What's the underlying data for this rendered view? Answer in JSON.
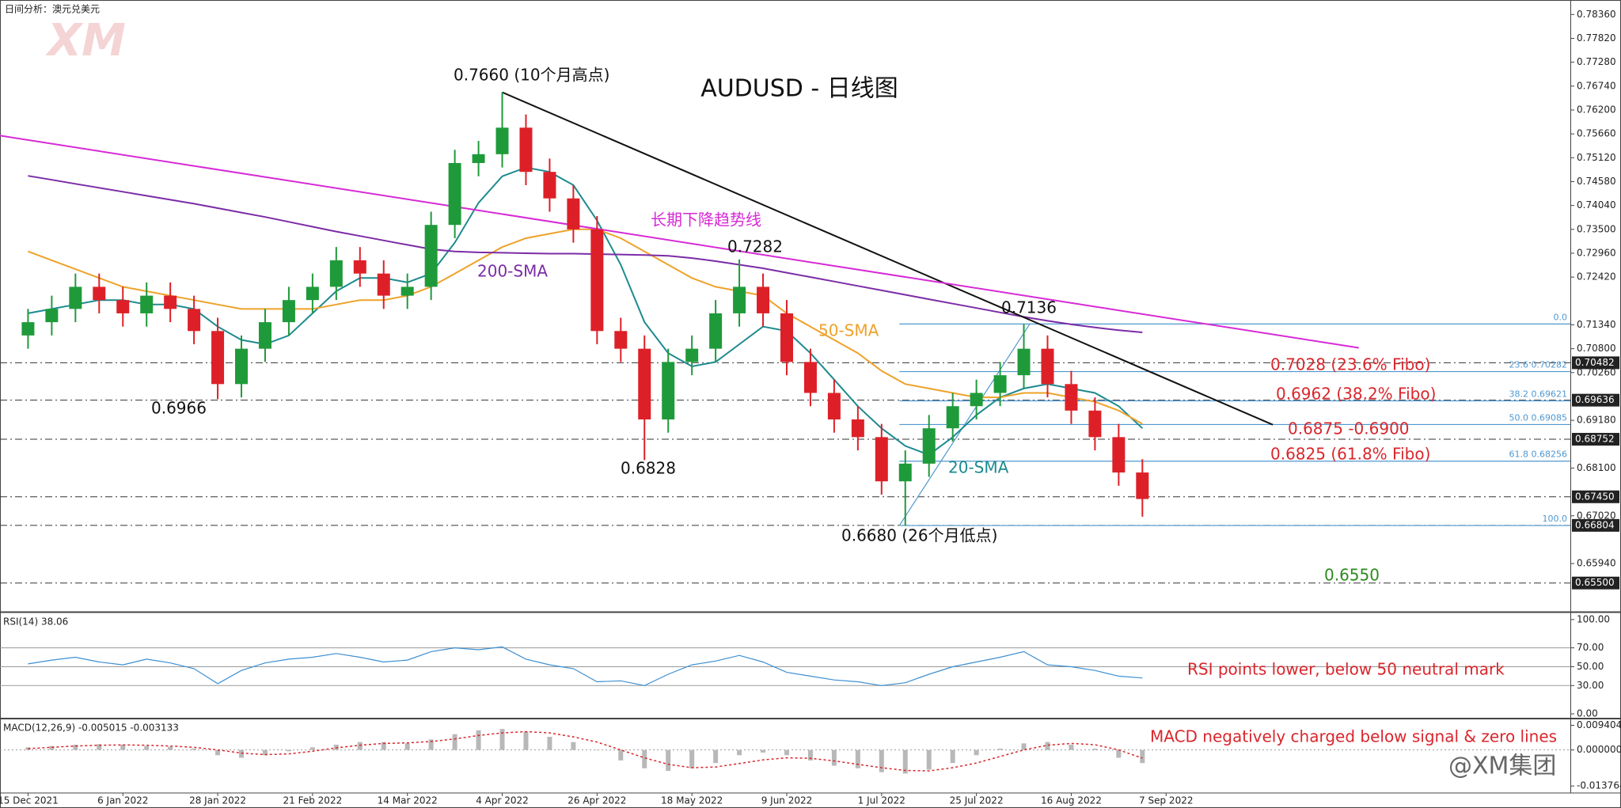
{
  "chart_data": [
    {
      "type": "candlestick",
      "title": "AUDUSD - 日线图",
      "subtitle": "日间分析：澳元兑美元",
      "logo": "XM",
      "watermark": "@XM集团",
      "x": [
        0,
        4,
        8,
        12,
        16,
        20,
        24,
        28,
        32,
        36,
        40,
        44,
        48,
        52,
        56,
        60,
        64,
        68,
        72,
        76,
        80,
        84,
        88,
        92,
        96,
        100,
        104,
        108,
        112,
        116,
        120,
        124,
        128,
        132,
        136,
        140,
        144,
        148,
        152,
        156,
        160,
        164,
        168,
        172,
        176,
        180,
        184,
        188
      ],
      "open": [
        0.711,
        0.714,
        0.717,
        0.722,
        0.719,
        0.716,
        0.72,
        0.717,
        0.712,
        0.7,
        0.708,
        0.714,
        0.719,
        0.722,
        0.728,
        0.725,
        0.72,
        0.722,
        0.736,
        0.75,
        0.752,
        0.758,
        0.748,
        0.742,
        0.735,
        0.712,
        0.708,
        0.692,
        0.705,
        0.708,
        0.716,
        0.722,
        0.716,
        0.705,
        0.698,
        0.692,
        0.688,
        0.678,
        0.682,
        0.69,
        0.695,
        0.698,
        0.702,
        0.708,
        0.7,
        0.694,
        0.688,
        0.68
      ],
      "high": [
        0.717,
        0.72,
        0.725,
        0.725,
        0.722,
        0.723,
        0.723,
        0.72,
        0.715,
        0.711,
        0.717,
        0.722,
        0.725,
        0.731,
        0.731,
        0.728,
        0.725,
        0.739,
        0.753,
        0.755,
        0.766,
        0.761,
        0.751,
        0.745,
        0.738,
        0.715,
        0.711,
        0.708,
        0.711,
        0.719,
        0.7282,
        0.725,
        0.719,
        0.708,
        0.701,
        0.695,
        0.691,
        0.685,
        0.693,
        0.698,
        0.701,
        0.705,
        0.7136,
        0.711,
        0.703,
        0.697,
        0.691,
        0.683
      ],
      "low": [
        0.708,
        0.711,
        0.714,
        0.716,
        0.713,
        0.713,
        0.714,
        0.709,
        0.6966,
        0.697,
        0.705,
        0.711,
        0.716,
        0.719,
        0.722,
        0.717,
        0.717,
        0.719,
        0.733,
        0.747,
        0.749,
        0.745,
        0.739,
        0.732,
        0.709,
        0.705,
        0.6828,
        0.689,
        0.702,
        0.705,
        0.713,
        0.713,
        0.702,
        0.695,
        0.689,
        0.685,
        0.675,
        0.668,
        0.679,
        0.687,
        0.692,
        0.695,
        0.699,
        0.697,
        0.691,
        0.685,
        0.677,
        0.67
      ],
      "close": [
        0.714,
        0.717,
        0.722,
        0.719,
        0.716,
        0.72,
        0.717,
        0.712,
        0.7,
        0.708,
        0.714,
        0.719,
        0.722,
        0.728,
        0.725,
        0.72,
        0.722,
        0.736,
        0.75,
        0.752,
        0.758,
        0.748,
        0.742,
        0.735,
        0.712,
        0.708,
        0.692,
        0.705,
        0.708,
        0.716,
        0.722,
        0.716,
        0.705,
        0.698,
        0.692,
        0.688,
        0.678,
        0.682,
        0.69,
        0.695,
        0.698,
        0.702,
        0.708,
        0.7,
        0.694,
        0.688,
        0.68,
        0.674
      ],
      "up_color": "#1f9a3a",
      "down_color": "#dd2027",
      "series": [
        {
          "name": "20-SMA",
          "color": "#1d8a90",
          "values": [
            0.716,
            0.717,
            0.718,
            0.719,
            0.719,
            0.718,
            0.718,
            0.717,
            0.713,
            0.71,
            0.709,
            0.711,
            0.716,
            0.721,
            0.724,
            0.724,
            0.723,
            0.725,
            0.732,
            0.741,
            0.747,
            0.749,
            0.748,
            0.745,
            0.737,
            0.727,
            0.714,
            0.707,
            0.704,
            0.705,
            0.709,
            0.713,
            0.712,
            0.707,
            0.701,
            0.695,
            0.69,
            0.686,
            0.684,
            0.688,
            0.693,
            0.697,
            0.699,
            0.7,
            0.699,
            0.698,
            0.695,
            0.69
          ]
        },
        {
          "name": "50-SMA",
          "color": "#eea22a",
          "values": [
            0.73,
            0.728,
            0.726,
            0.724,
            0.722,
            0.721,
            0.72,
            0.719,
            0.718,
            0.717,
            0.717,
            0.717,
            0.717,
            0.718,
            0.719,
            0.719,
            0.72,
            0.722,
            0.725,
            0.728,
            0.731,
            0.733,
            0.734,
            0.735,
            0.735,
            0.733,
            0.73,
            0.727,
            0.724,
            0.722,
            0.721,
            0.72,
            0.716,
            0.713,
            0.71,
            0.707,
            0.703,
            0.7,
            0.699,
            0.698,
            0.697,
            0.697,
            0.698,
            0.698,
            0.697,
            0.696,
            0.694,
            0.691
          ]
        },
        {
          "name": "200-SMA",
          "color": "#7b2ca6",
          "values": [
            0.7471,
            0.7462,
            0.7453,
            0.7444,
            0.7435,
            0.7426,
            0.7417,
            0.7408,
            0.7398,
            0.7388,
            0.7378,
            0.7367,
            0.7356,
            0.7345,
            0.7335,
            0.7325,
            0.7315,
            0.7305,
            0.73,
            0.7298,
            0.7297,
            0.7296,
            0.7295,
            0.7295,
            0.7294,
            0.7293,
            0.7292,
            0.729,
            0.7285,
            0.7278,
            0.727,
            0.7262,
            0.7252,
            0.7242,
            0.7232,
            0.7222,
            0.7212,
            0.7202,
            0.7192,
            0.7182,
            0.7172,
            0.7162,
            0.7152,
            0.7143,
            0.7135,
            0.7128,
            0.7122,
            0.7117
          ]
        }
      ],
      "trendlines": [
        {
          "x": [
            80,
            210
          ],
          "y": [
            0.766,
            0.6908
          ],
          "color": "#111111"
        },
        {
          "x": [
            -4.73,
            224.5
          ],
          "y": [
            0.7562,
            0.7082
          ],
          "color": "#d62ad6"
        }
      ],
      "fibo": {
        "x": [
          147,
          169
        ],
        "y": [
          0.668,
          0.7136
        ],
        "color": "#4f97cf",
        "levels": [
          {
            "value": 0.7136,
            "label": "0.0"
          },
          {
            "value": 0.70282,
            "label": "23.6 0.70282"
          },
          {
            "value": 0.69621,
            "label": "38.2 0.69621"
          },
          {
            "value": 0.69085,
            "label": "50.0 0.69085"
          },
          {
            "value": 0.68256,
            "label": "61.8 0.68256"
          },
          {
            "value": 0.668,
            "label": "100.0"
          }
        ]
      },
      "levels": [
        0.70482,
        0.69636,
        0.68752,
        {
          "value": 0.6745,
          "label": "0.67450"
        },
        0.66804,
        {
          "value": 0.655,
          "label": "0.65500"
        }
      ],
      "xlim": [
        -4.73,
        260.2
      ],
      "ylim": [
        0.64868,
        0.78688
      ],
      "xticks": [
        {
          "value": 0,
          "label": "15 Dec 2021"
        },
        {
          "value": 16,
          "label": "6 Jan 2022"
        },
        {
          "value": 32,
          "label": "28 Jan 2022"
        },
        {
          "value": 48,
          "label": "21 Feb 2022"
        },
        {
          "value": 64,
          "label": "14 Mar 2022"
        },
        {
          "value": 80,
          "label": "4 Apr 2022"
        },
        {
          "value": 96,
          "label": "26 Apr 2022"
        },
        {
          "value": 112,
          "label": "18 May 2022"
        },
        {
          "value": 128,
          "label": "9 Jun 2022"
        },
        {
          "value": 144,
          "label": "1 Jul 2022"
        },
        {
          "value": 160,
          "label": "25 Jul 2022"
        },
        {
          "value": 176,
          "label": "16 Aug 2022"
        },
        {
          "value": 192,
          "label": "7 Sep 2022"
        }
      ],
      "yticks": [
        {
          "value": 0.7836,
          "label": "0.78360"
        },
        {
          "value": 0.7782,
          "label": "0.77820"
        },
        {
          "value": 0.7728,
          "label": "0.77280"
        },
        {
          "value": 0.7674,
          "label": "0.76740"
        },
        {
          "value": 0.762,
          "label": "0.76200"
        },
        {
          "value": 0.7566,
          "label": "0.75660"
        },
        {
          "value": 0.7512,
          "label": "0.75120"
        },
        {
          "value": 0.7458,
          "label": "0.74580"
        },
        {
          "value": 0.7404,
          "label": "0.74040"
        },
        {
          "value": 0.735,
          "label": "0.73500"
        },
        {
          "value": 0.7296,
          "label": "0.72960"
        },
        {
          "value": 0.7242,
          "label": "0.72420"
        },
        {
          "value": 0.7134,
          "label": "0.71340"
        },
        {
          "value": 0.708,
          "label": "0.70800"
        },
        {
          "value": 0.7026,
          "label": "0.70260"
        },
        {
          "value": 0.6918,
          "label": "0.69180"
        },
        {
          "value": 0.681,
          "label": "0.68100"
        },
        {
          "value": 0.6702,
          "label": "0.67020"
        },
        {
          "value": 0.6594,
          "label": "0.65940"
        }
      ],
      "annotations": [
        "0.7660 (10个月高点)",
        "长期下降趋势线",
        "0.7282",
        "0.7136",
        "0.6966",
        "0.6828",
        "0.6680 (26个月低点)",
        "0.7028 (23.6% Fibo)",
        "0.6962 (38.2% Fibo)",
        "0.6875 -0.6900",
        "0.6825 (61.8% Fibo)",
        "0.6550"
      ]
    },
    {
      "type": "line",
      "title": "RSI(14) 38.06",
      "color": "#3d8fd1",
      "x": [
        0,
        4,
        8,
        12,
        16,
        20,
        24,
        28,
        32,
        36,
        40,
        44,
        48,
        52,
        56,
        60,
        64,
        68,
        72,
        76,
        80,
        84,
        88,
        92,
        96,
        100,
        104,
        108,
        112,
        116,
        120,
        124,
        128,
        132,
        136,
        140,
        144,
        148,
        152,
        156,
        160,
        164,
        168,
        172,
        176,
        180,
        184,
        188
      ],
      "values": [
        53,
        57,
        60,
        55,
        52,
        58,
        54,
        48,
        32,
        46,
        54,
        58,
        60,
        64,
        60,
        55,
        57,
        66,
        70,
        68,
        71,
        58,
        52,
        48,
        34,
        35,
        30,
        42,
        52,
        56,
        62,
        55,
        44,
        40,
        36,
        34,
        30,
        33,
        42,
        50,
        55,
        60,
        66,
        52,
        50,
        46,
        40,
        38.06
      ],
      "levels": [
        70,
        50,
        30
      ],
      "xlim": [
        -4.73,
        260.2
      ],
      "ylim": [
        -3.3,
        106.6
      ],
      "yticks": [
        {
          "value": 100,
          "label": "100.00"
        },
        {
          "value": 70,
          "label": "70.00"
        },
        {
          "value": 50,
          "label": "50.00"
        },
        {
          "value": 30,
          "label": "30.00"
        },
        {
          "value": 0,
          "label": "0.00"
        }
      ],
      "annotations": [
        "RSI points lower, below 50 neutral mark"
      ]
    },
    {
      "type": "bar",
      "title": "MACD(12,26,9) -0.005015 -0.003133",
      "x": [
        0,
        4,
        8,
        12,
        16,
        20,
        24,
        28,
        32,
        36,
        40,
        44,
        48,
        52,
        56,
        60,
        64,
        68,
        72,
        76,
        80,
        84,
        88,
        92,
        96,
        100,
        104,
        108,
        112,
        116,
        120,
        124,
        128,
        132,
        136,
        140,
        144,
        148,
        152,
        156,
        160,
        164,
        168,
        172,
        176,
        180,
        184,
        188
      ],
      "series": [
        {
          "kind": "bar",
          "color": "#b8b8b8",
          "values": [
            0.001,
            0.0015,
            0.002,
            0.0022,
            0.002,
            0.0015,
            0.0012,
            0.0005,
            -0.002,
            -0.003,
            -0.002,
            -0.0005,
            0.001,
            0.002,
            0.003,
            0.003,
            0.0025,
            0.004,
            0.006,
            0.0075,
            0.008,
            0.007,
            0.005,
            0.003,
            0.0,
            -0.004,
            -0.007,
            -0.008,
            -0.007,
            -0.005,
            -0.002,
            -0.001,
            -0.002,
            -0.004,
            -0.006,
            -0.007,
            -0.0085,
            -0.009,
            -0.0075,
            -0.005,
            -0.002,
            0.0005,
            0.0025,
            0.003,
            0.002,
            0.0005,
            -0.003,
            -0.005015
          ]
        },
        {
          "kind": "line",
          "color": "#d9262c",
          "values": [
            0.0005,
            0.001,
            0.0015,
            0.0018,
            0.0019,
            0.0018,
            0.0015,
            0.001,
            0.0,
            -0.0012,
            -0.0018,
            -0.0015,
            -0.0005,
            0.0008,
            0.0018,
            0.0025,
            0.0027,
            0.0032,
            0.0042,
            0.0055,
            0.0065,
            0.007,
            0.0065,
            0.005,
            0.003,
            0.0,
            -0.003,
            -0.0055,
            -0.0068,
            -0.0065,
            -0.0052,
            -0.0038,
            -0.003,
            -0.0032,
            -0.0042,
            -0.0055,
            -0.0068,
            -0.0078,
            -0.008,
            -0.0068,
            -0.005,
            -0.0025,
            0.0,
            0.0018,
            0.0025,
            0.002,
            0.0,
            -0.003133
          ]
        }
      ],
      "xlim": [
        -4.73,
        260.2
      ],
      "ylim": [
        -0.01612,
        0.011367
      ],
      "yticks": [
        0.009404,
        {
          "value": 0,
          "label": "0.000000"
        },
        -0.013764
      ],
      "annotations": [
        "MACD negatively charged below signal & zero lines"
      ]
    }
  ]
}
